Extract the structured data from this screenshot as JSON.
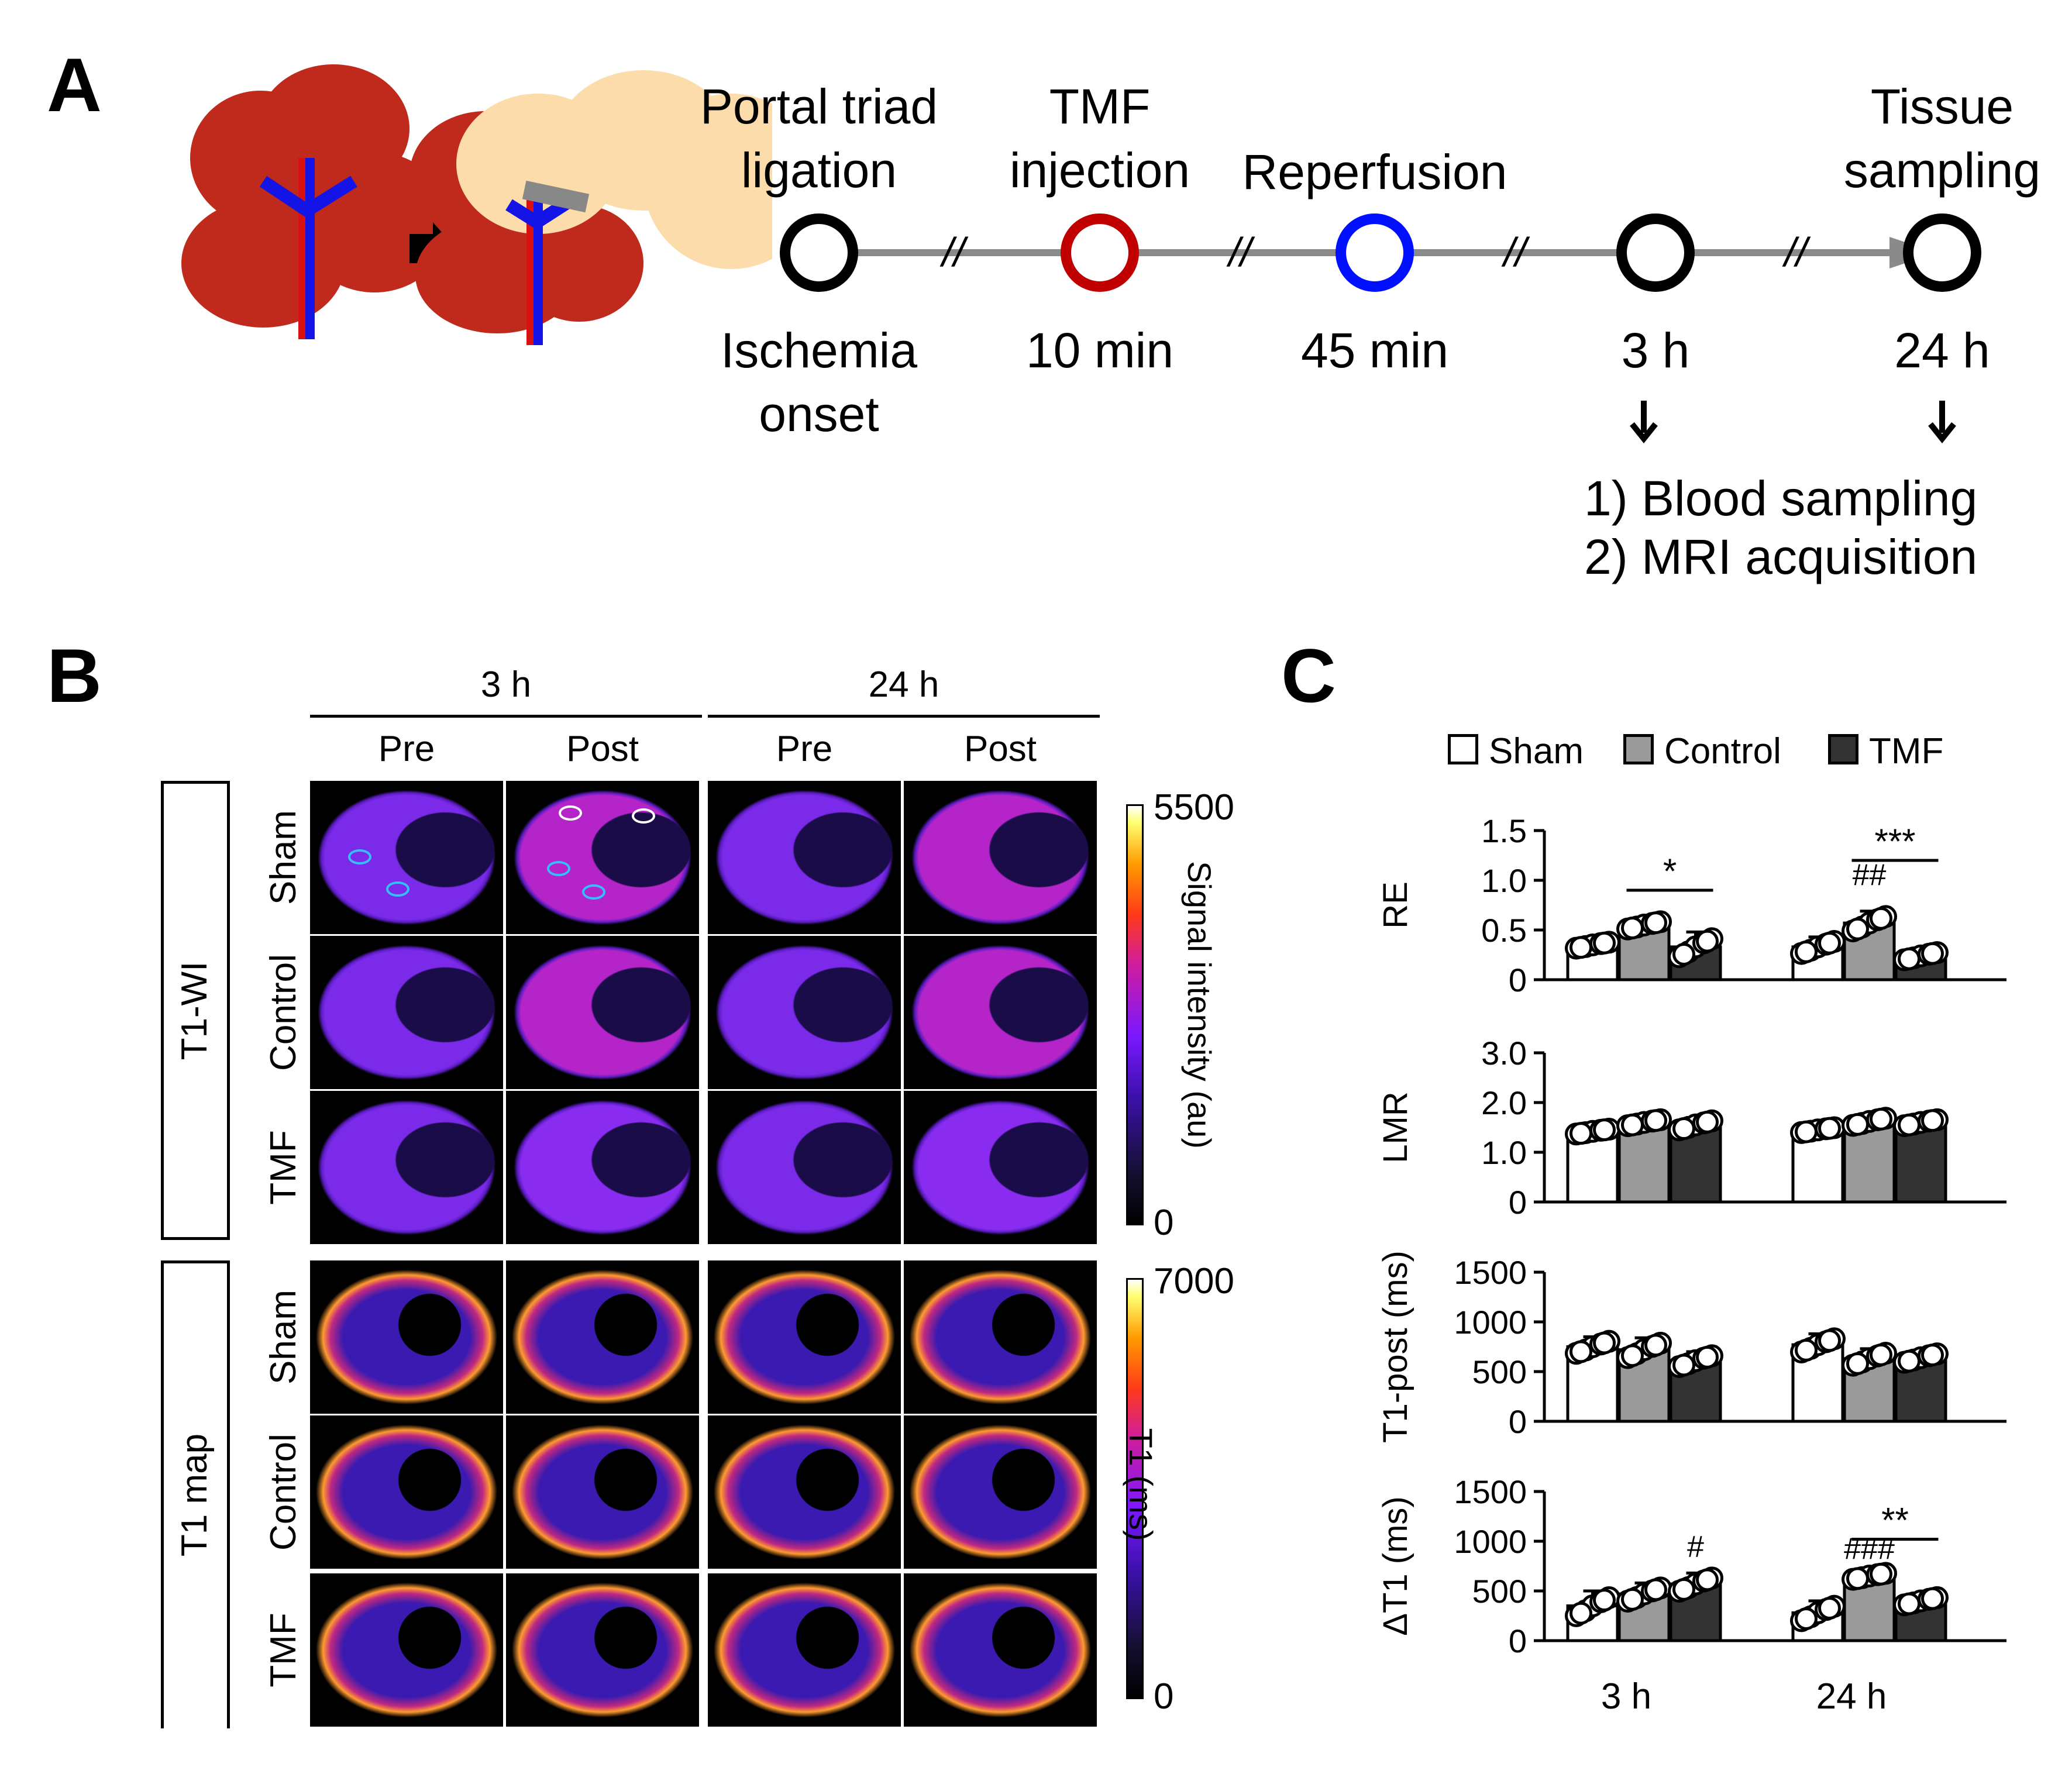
{
  "panels": {
    "a": "A",
    "b": "B",
    "c": "C"
  },
  "timeline": {
    "events": [
      {
        "top": "",
        "bottom": "Ischemia\nonset",
        "color": "#000000"
      },
      {
        "top": "TMF\ninjection",
        "bottom": "10 min",
        "color": "#c00000"
      },
      {
        "top": "Reperfusion",
        "bottom": "45 min",
        "color": "#0010ff"
      },
      {
        "top": "",
        "bottom": "3 h",
        "color": "#000000"
      },
      {
        "top": "Tissue\nsampling",
        "bottom": "24 h",
        "color": "#000000"
      }
    ],
    "first_top": "Portal triad\nligation",
    "break_mark": "//",
    "outcomes": [
      "1)  Blood sampling",
      "2)  MRI acquisition"
    ]
  },
  "panel_b": {
    "time_groups": [
      "3 h",
      "24 h"
    ],
    "columns": [
      "Pre",
      "Post",
      "Pre",
      "Post"
    ],
    "sections": [
      {
        "name": "T1-WI",
        "rows": [
          "Sham",
          "Control",
          "TMF"
        ],
        "colorbar": {
          "max": "5500",
          "min": "0",
          "label": "Signal intensity (au)"
        }
      },
      {
        "name": "T1 map",
        "rows": [
          "Sham",
          "Control",
          "TMF"
        ],
        "colorbar": {
          "max": "7000",
          "min": "0",
          "label": "T1 (ms)"
        }
      }
    ]
  },
  "legend": [
    {
      "label": "Sham",
      "color": "#ffffff"
    },
    {
      "label": "Control",
      "color": "#9a9a9a"
    },
    {
      "label": "TMF",
      "color": "#333333"
    }
  ],
  "chart_data": [
    {
      "type": "bar",
      "ylabel": "RE",
      "ylim": [
        0,
        1.5
      ],
      "yticks": [
        "0",
        "0.5",
        "1.0",
        "1.5"
      ],
      "categories": [
        "3 h",
        "24 h"
      ],
      "series": [
        {
          "name": "Sham",
          "values": [
            0.35,
            0.33
          ]
        },
        {
          "name": "Control",
          "values": [
            0.55,
            0.57
          ]
        },
        {
          "name": "TMF",
          "values": [
            0.33,
            0.24
          ]
        }
      ],
      "errors": [
        [
          0.05,
          0.1
        ],
        [
          0.06,
          0.12
        ],
        [
          0.15,
          0.06
        ]
      ],
      "annotations": [
        {
          "text": "*",
          "type": "bracket",
          "group": 0,
          "from": 1,
          "to": 2,
          "y": 0.9
        },
        {
          "text": "***",
          "type": "bracket",
          "group": 1,
          "from": 1,
          "to": 2,
          "y": 1.2
        },
        {
          "text": "##",
          "type": "mark",
          "group": 1,
          "bar": 1,
          "y": 0.95
        }
      ]
    },
    {
      "type": "bar",
      "ylabel": "LMR",
      "ylim": [
        0,
        3.0
      ],
      "yticks": [
        "0",
        "1.0",
        "2.0",
        "3.0"
      ],
      "categories": [
        "3 h",
        "24 h"
      ],
      "series": [
        {
          "name": "Sham",
          "values": [
            1.42,
            1.45
          ]
        },
        {
          "name": "Control",
          "values": [
            1.6,
            1.62
          ]
        },
        {
          "name": "TMF",
          "values": [
            1.55,
            1.6
          ]
        }
      ],
      "errors": [
        [
          0.08,
          0.08
        ],
        [
          0.1,
          0.12
        ],
        [
          0.15,
          0.1
        ]
      ],
      "annotations": []
    },
    {
      "type": "bar",
      "ylabel": "T1-post (ms)",
      "ylim": [
        0,
        1500
      ],
      "yticks": [
        "0",
        "500",
        "1000",
        "1500"
      ],
      "categories": [
        "3 h",
        "24 h"
      ],
      "series": [
        {
          "name": "Sham",
          "values": [
            750,
            770
          ]
        },
        {
          "name": "Control",
          "values": [
            720,
            630
          ]
        },
        {
          "name": "TMF",
          "values": [
            610,
            640
          ]
        }
      ],
      "errors": [
        [
          100,
          110
        ],
        [
          120,
          100
        ],
        [
          90,
          70
        ]
      ],
      "annotations": []
    },
    {
      "type": "bar",
      "ylabel": "ΔT1 (ms)",
      "ylim": [
        0,
        1500
      ],
      "yticks": [
        "0",
        "500",
        "1000",
        "1500"
      ],
      "categories": [
        "3 h",
        "24 h"
      ],
      "series": [
        {
          "name": "Sham",
          "values": [
            350,
            280
          ]
        },
        {
          "name": "Control",
          "values": [
            470,
            650
          ]
        },
        {
          "name": "TMF",
          "values": [
            570,
            400
          ]
        }
      ],
      "errors": [
        [
          150,
          120
        ],
        [
          110,
          50
        ],
        [
          110,
          60
        ]
      ],
      "annotations": [
        {
          "text": "#",
          "type": "mark",
          "group": 0,
          "bar": 2,
          "y": 840
        },
        {
          "text": "###",
          "type": "mark",
          "group": 1,
          "bar": 1,
          "y": 820
        },
        {
          "text": "**",
          "type": "bracket",
          "group": 1,
          "from": 1,
          "to": 2,
          "y": 1020
        }
      ]
    }
  ],
  "x_axis_labels": [
    "3 h",
    "24 h"
  ]
}
